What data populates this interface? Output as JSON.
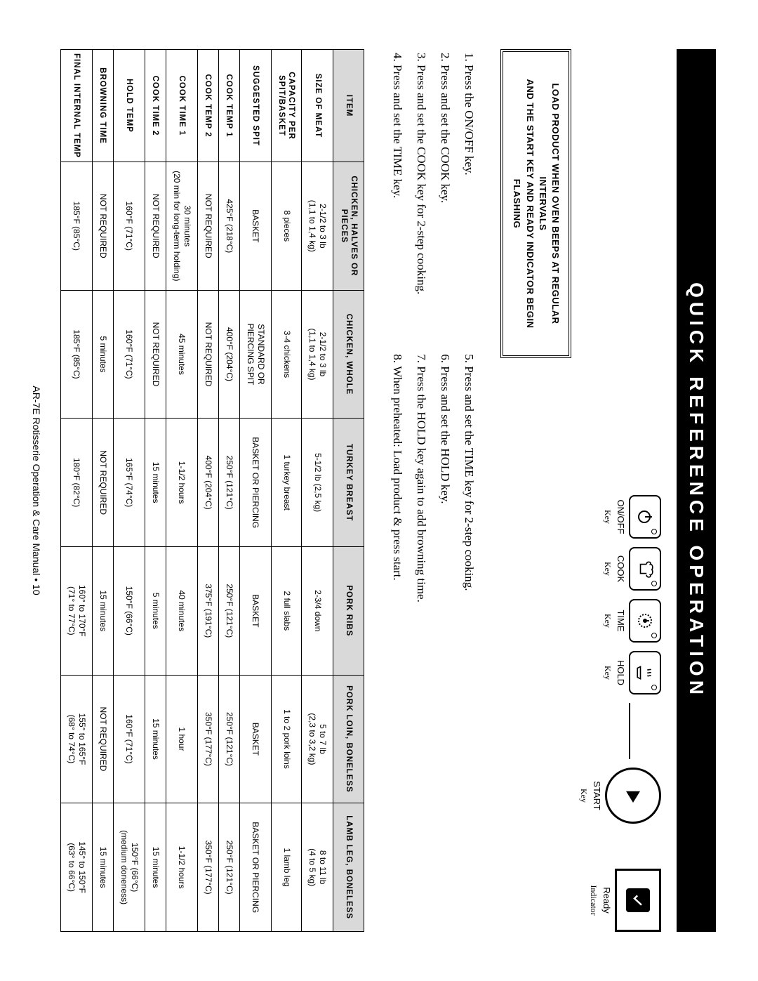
{
  "title_bar": "QUICK REFERENCE OPERATION",
  "keys": {
    "onoff": {
      "label": "ON/OFF",
      "sub": "Key"
    },
    "cook": {
      "label": "COOK",
      "sub": "Key"
    },
    "time": {
      "label": "TIME",
      "sub": "Key"
    },
    "hold": {
      "label": "HOLD",
      "sub": "Key"
    },
    "start": {
      "label": "START",
      "sub": "Key"
    },
    "ready": {
      "label": "Ready",
      "sub": "Indicator"
    }
  },
  "load_box_line1": "LOAD PRODUCT WHEN OVEN BEEPS AT REGULAR INTERVALS",
  "load_box_line2": "AND THE START KEY AND READY INDICATOR BEGIN FLASHING",
  "steps_left": [
    "Press the ON/OFF key.",
    "Press and set the COOK key.",
    "Press and set the COOK key for 2-step cooking.",
    "Press and set the TIME key."
  ],
  "steps_right": [
    "Press and set the TIME key for 2-step cooking.",
    "Press and set the HOLD key.",
    "Press the HOLD key again to add browning time.",
    "When preheated: Load product & press start."
  ],
  "row_headers": [
    "ITEM",
    "SIZE OF MEAT",
    "CAPACITY PER SPIT/BASKET",
    "SUGGESTED SPIT",
    "COOK TEMP 1",
    "COOK TEMP 2",
    "COOK TIME 1",
    "COOK TIME 2",
    "HOLD TEMP",
    "BROWNING TIME",
    "FINAL INTERNAL TEMP"
  ],
  "meats": [
    "CHICKEN, HALVES OR PIECES",
    "CHICKEN, WHOLE",
    "TURKEY BREAST",
    "PORK RIBS",
    "PORK LOIN, BONELESS",
    "LAMB LEG, BONELESS"
  ],
  "rows": {
    "size": [
      "2-1/2 to 3 lb\n(1,1 to 1,4 kg)",
      "2-1/2 to 3 lb\n(1,1 to 1,4 kg)",
      "5-1/2 lb (2,5 kg)",
      "2-3/4 down",
      "5 to 7 lb\n(2,3 to 3,2 kg)",
      "8 to 11 lb\n(4 to 5 kg)"
    ],
    "capacity": [
      "8 pieces",
      "3-4 chickens",
      "1 turkey breast",
      "2 full slabs",
      "1 to 2 pork loins",
      "1 lamb leg"
    ],
    "spit": [
      "BASKET",
      "STANDARD OR\nPIERCING SPIT",
      "BASKET OR PIERCING",
      "BASKET",
      "BASKET",
      "BASKET OR PIERCING"
    ],
    "temp1": [
      "425°F (218°C)",
      "400°F (204°C)",
      "250°F (121°C)",
      "250°F (121°C)",
      "250°F (121°C)",
      "250°F (121°C)"
    ],
    "temp2": [
      "NOT REQUIRED",
      "NOT REQUIRED",
      "400°F (204°C)",
      "375°F (191°C)",
      "350°F (177°C)",
      "350°F (177°C)"
    ],
    "time1": [
      "30 minutes\n(20 min for long-term holding)",
      "45 minutes",
      "1-1/2 hours",
      "40 minutes",
      "1 hour",
      "1-1/2 hours"
    ],
    "time2": [
      "NOT REQUIRED",
      "NOT REQUIRED",
      "15 minutes",
      "5 minutes",
      "15 minutes",
      "15 minutes"
    ],
    "hold": [
      "160°F (71°C)",
      "160°F (71°C)",
      "165°F (74°C)",
      "150°F (66°C)",
      "160°F (71°C)",
      "150°F (66°C)\n(medium doneness)"
    ],
    "brown": [
      "NOT REQUIRED",
      "5 minutes",
      "NOT REQUIRED",
      "15 minutes",
      "NOT REQUIRED",
      "15 minutes"
    ],
    "final": [
      "185°F (85°C)",
      "185°F (85°C)",
      "180°F (82°C)",
      "160° to 170°F\n(71° to 77°C)",
      "155° to 165°F\n(68° to 74°C)",
      "145° to 150°F\n(63° to 66°C)"
    ]
  },
  "footer": "AR-7E Rotisserie Operation & Care Manual • 10"
}
